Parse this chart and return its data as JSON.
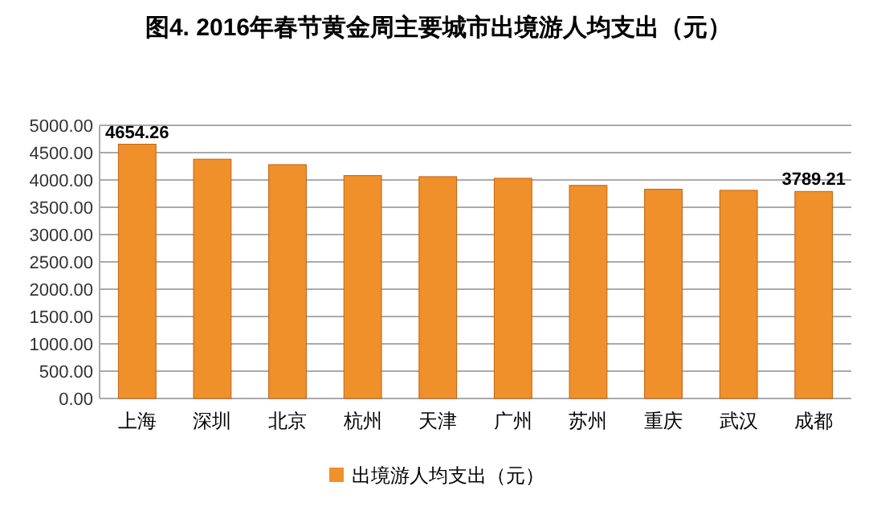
{
  "chart_data": {
    "type": "bar",
    "title": "图4. 2016年春节黄金周主要城市出境游人均支出（元）",
    "categories": [
      "上海",
      "深圳",
      "北京",
      "杭州",
      "天津",
      "广州",
      "苏州",
      "重庆",
      "武汉",
      "成都"
    ],
    "series": [
      {
        "name": "出境游人均支出（元）",
        "color": "#f0902a",
        "values": [
          4654.26,
          4380,
          4280,
          4080,
          4060,
          4030,
          3900,
          3830,
          3810,
          3789.21
        ],
        "value_labels": [
          "4654.26",
          null,
          null,
          null,
          null,
          null,
          null,
          null,
          null,
          "3789.21"
        ]
      }
    ],
    "ylim": [
      0,
      5000
    ],
    "yticks": [
      {
        "value": 0,
        "label": "0.00"
      },
      {
        "value": 500,
        "label": "500.00"
      },
      {
        "value": 1000,
        "label": "1000.00"
      },
      {
        "value": 1500,
        "label": "1500.00"
      },
      {
        "value": 2000,
        "label": "2000.00"
      },
      {
        "value": 2500,
        "label": "2500.00"
      },
      {
        "value": 3000,
        "label": "3000.00"
      },
      {
        "value": 3500,
        "label": "3500.00"
      },
      {
        "value": 4000,
        "label": "4000.00"
      },
      {
        "value": 4500,
        "label": "4500.00"
      },
      {
        "value": 5000,
        "label": "5000.00"
      }
    ],
    "grid": "y",
    "legend": "bottom"
  }
}
